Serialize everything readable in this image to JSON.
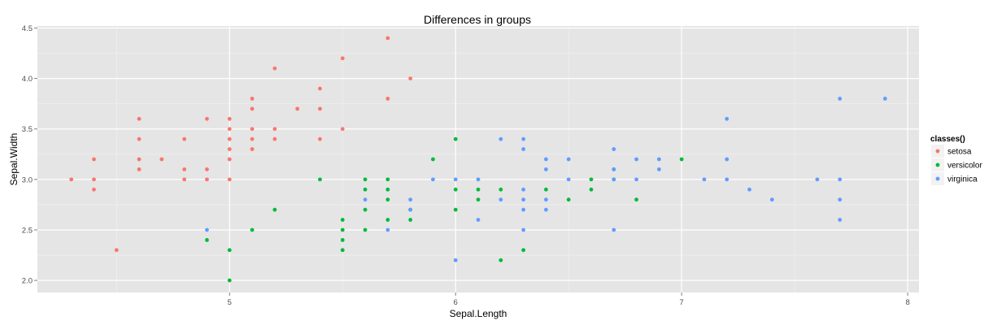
{
  "chart_data": {
    "type": "scatter",
    "title": "Differences in groups",
    "xlabel": "Sepal.Length",
    "ylabel": "Sepal.Width",
    "xlim": [
      4.15,
      8.05
    ],
    "ylim": [
      1.88,
      4.52
    ],
    "x_ticks": [
      5,
      6,
      7,
      8
    ],
    "x_tick_labels": [
      "5",
      "6",
      "7",
      "8"
    ],
    "y_ticks": [
      2.0,
      2.5,
      3.0,
      3.5,
      4.0,
      4.5
    ],
    "y_tick_labels": [
      "2.0",
      "2.5",
      "3.0",
      "3.5",
      "4.0",
      "4.5"
    ],
    "grid": true,
    "legend": {
      "title": "classes()",
      "position": "right"
    },
    "series": [
      {
        "name": "setosa",
        "color": "#F8766D",
        "points": [
          [
            4.3,
            3.0
          ],
          [
            4.4,
            3.2
          ],
          [
            4.4,
            3.0
          ],
          [
            4.4,
            2.9
          ],
          [
            4.5,
            2.3
          ],
          [
            4.6,
            3.6
          ],
          [
            4.6,
            3.4
          ],
          [
            4.6,
            3.2
          ],
          [
            4.6,
            3.1
          ],
          [
            4.7,
            3.2
          ],
          [
            4.8,
            3.4
          ],
          [
            4.8,
            3.1
          ],
          [
            4.8,
            3.0
          ],
          [
            4.9,
            3.6
          ],
          [
            4.9,
            3.1
          ],
          [
            4.9,
            3.0
          ],
          [
            5.0,
            3.6
          ],
          [
            5.0,
            3.5
          ],
          [
            5.0,
            3.4
          ],
          [
            5.0,
            3.3
          ],
          [
            5.0,
            3.2
          ],
          [
            5.0,
            3.0
          ],
          [
            5.1,
            3.8
          ],
          [
            5.1,
            3.7
          ],
          [
            5.1,
            3.5
          ],
          [
            5.1,
            3.4
          ],
          [
            5.1,
            3.3
          ],
          [
            5.2,
            4.1
          ],
          [
            5.2,
            3.5
          ],
          [
            5.2,
            3.4
          ],
          [
            5.3,
            3.7
          ],
          [
            5.4,
            3.9
          ],
          [
            5.4,
            3.7
          ],
          [
            5.4,
            3.4
          ],
          [
            5.5,
            4.2
          ],
          [
            5.5,
            3.5
          ],
          [
            5.7,
            4.4
          ],
          [
            5.7,
            3.8
          ],
          [
            5.8,
            4.0
          ]
        ]
      },
      {
        "name": "versicolor",
        "color": "#00BA38",
        "points": [
          [
            4.9,
            2.4
          ],
          [
            5.0,
            2.3
          ],
          [
            5.0,
            2.0
          ],
          [
            5.1,
            2.5
          ],
          [
            5.2,
            2.7
          ],
          [
            5.4,
            3.0
          ],
          [
            5.5,
            2.6
          ],
          [
            5.5,
            2.5
          ],
          [
            5.5,
            2.4
          ],
          [
            5.5,
            2.3
          ],
          [
            5.6,
            3.0
          ],
          [
            5.6,
            2.9
          ],
          [
            5.6,
            2.7
          ],
          [
            5.6,
            2.5
          ],
          [
            5.7,
            3.0
          ],
          [
            5.7,
            2.9
          ],
          [
            5.7,
            2.8
          ],
          [
            5.7,
            2.6
          ],
          [
            5.8,
            2.7
          ],
          [
            5.8,
            2.6
          ],
          [
            5.9,
            3.2
          ],
          [
            6.0,
            3.4
          ],
          [
            6.0,
            2.9
          ],
          [
            6.0,
            2.7
          ],
          [
            6.1,
            2.9
          ],
          [
            6.1,
            2.8
          ],
          [
            6.2,
            2.9
          ],
          [
            6.2,
            2.2
          ],
          [
            6.3,
            2.3
          ],
          [
            6.4,
            2.9
          ],
          [
            6.5,
            2.8
          ],
          [
            6.6,
            3.0
          ],
          [
            6.6,
            2.9
          ],
          [
            6.7,
            3.1
          ],
          [
            6.7,
            3.0
          ],
          [
            6.8,
            2.8
          ],
          [
            7.0,
            3.2
          ]
        ]
      },
      {
        "name": "virginica",
        "color": "#619CFF",
        "points": [
          [
            4.9,
            2.5
          ],
          [
            5.6,
            2.8
          ],
          [
            5.7,
            2.5
          ],
          [
            5.8,
            2.8
          ],
          [
            5.8,
            2.7
          ],
          [
            5.9,
            3.0
          ],
          [
            6.0,
            3.0
          ],
          [
            6.0,
            2.2
          ],
          [
            6.1,
            3.0
          ],
          [
            6.1,
            2.6
          ],
          [
            6.2,
            3.4
          ],
          [
            6.2,
            2.8
          ],
          [
            6.3,
            3.4
          ],
          [
            6.3,
            3.3
          ],
          [
            6.3,
            2.9
          ],
          [
            6.3,
            2.8
          ],
          [
            6.3,
            2.7
          ],
          [
            6.3,
            2.5
          ],
          [
            6.4,
            3.2
          ],
          [
            6.4,
            3.1
          ],
          [
            6.4,
            2.8
          ],
          [
            6.4,
            2.7
          ],
          [
            6.5,
            3.2
          ],
          [
            6.5,
            3.0
          ],
          [
            6.7,
            3.3
          ],
          [
            6.7,
            3.1
          ],
          [
            6.7,
            3.0
          ],
          [
            6.7,
            2.5
          ],
          [
            6.8,
            3.2
          ],
          [
            6.8,
            3.0
          ],
          [
            6.9,
            3.2
          ],
          [
            6.9,
            3.1
          ],
          [
            7.1,
            3.0
          ],
          [
            7.2,
            3.6
          ],
          [
            7.2,
            3.2
          ],
          [
            7.2,
            3.0
          ],
          [
            7.3,
            2.9
          ],
          [
            7.4,
            2.8
          ],
          [
            7.6,
            3.0
          ],
          [
            7.7,
            3.8
          ],
          [
            7.7,
            3.0
          ],
          [
            7.7,
            2.8
          ],
          [
            7.7,
            2.6
          ],
          [
            7.9,
            3.8
          ]
        ]
      }
    ],
    "style": {
      "panel_background": "#E5E5E5",
      "major_grid": "#FFFFFF",
      "minor_grid": "#F2F2F2",
      "legend_key_background": "#F2F2F2"
    }
  }
}
